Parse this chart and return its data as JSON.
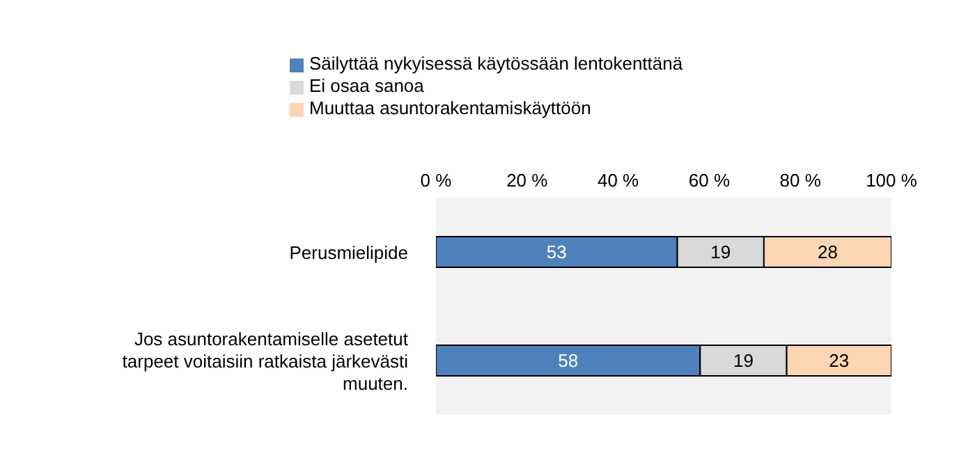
{
  "chart_data": {
    "type": "bar",
    "orientation": "horizontal",
    "stacked": true,
    "data_labels": true,
    "legend": "top",
    "grid": false,
    "categories": [
      "Perusmielipide",
      "Jos asuntorakentamiselle asetetut tarpeet voitaisiin ratkaista järkevästi muuten."
    ],
    "series": [
      {
        "name": "Säilyttää nykyisessä käytössään lentokenttänä",
        "color": "#4f81bd",
        "values": [
          53,
          58
        ]
      },
      {
        "name": "Ei osaa sanoa",
        "color": "#d9d9d9",
        "values": [
          19,
          19
        ]
      },
      {
        "name": "Muuttaa asuntorakentamiskäyttöön",
        "color": "#fcd5b5",
        "values": [
          28,
          23
        ]
      }
    ],
    "xlim": [
      0,
      100
    ],
    "xticks": [
      {
        "value": 0,
        "label": "0 %"
      },
      {
        "value": 20,
        "label": "20 %"
      },
      {
        "value": 40,
        "label": "40 %"
      },
      {
        "value": 60,
        "label": "60 %"
      },
      {
        "value": 80,
        "label": "80 %"
      },
      {
        "value": 100,
        "label": "100 %"
      }
    ]
  }
}
